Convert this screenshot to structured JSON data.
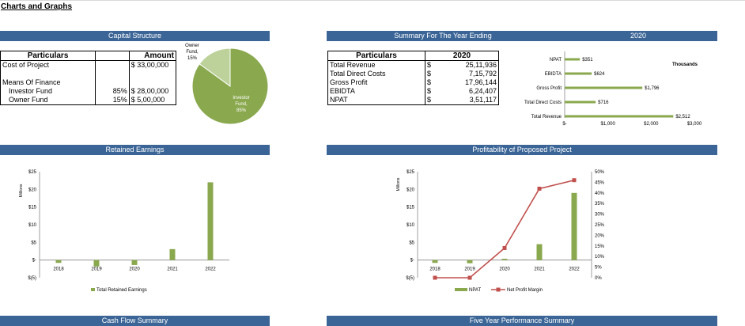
{
  "page_title": "Charts and Graphs",
  "capital": {
    "band": "Capital Structure",
    "col1": "Particulars",
    "col2": "Amount",
    "rows": [
      {
        "label": "Cost of Project",
        "pct": "",
        "amount": "$ 33,00,000"
      },
      {
        "label": "",
        "pct": "",
        "amount": ""
      },
      {
        "label": "Means Of Finance",
        "pct": "",
        "amount": ""
      },
      {
        "label": "Investor Fund",
        "pct": "85%",
        "amount": "$ 28,00,000"
      },
      {
        "label": "Owner Fund",
        "pct": "15%",
        "amount": "$ 5,00,000"
      }
    ]
  },
  "summary": {
    "band": "Summary For The Year Ending",
    "band_year": "2020",
    "col1": "Particulars",
    "col2": "2020",
    "rows": [
      {
        "label": "Total Revenue",
        "cur": "$",
        "value": "25,11,936"
      },
      {
        "label": "Total Direct Costs",
        "cur": "$",
        "value": "7,15,792"
      },
      {
        "label": "Gross Profit",
        "cur": "$",
        "value": "17,96,144"
      },
      {
        "label": "EBIDTA",
        "cur": "$",
        "value": "6,24,407"
      },
      {
        "label": "NPAT",
        "cur": "$",
        "value": "3,51,117"
      }
    ]
  },
  "bands": {
    "retained": "Retained Earnings",
    "profitability": "Profitability of Proposed Project",
    "cashflow": "Cash Flow Summary",
    "fiveyear": "Five Year Performance Summary"
  },
  "chart_data": [
    {
      "type": "pie",
      "slices": [
        {
          "name": "Investor Fund",
          "value": 85,
          "label_lines": [
            "Investor",
            "Fund,",
            "85%"
          ],
          "color": "#8aa84e"
        },
        {
          "name": "Owner Fund",
          "value": 15,
          "label_lines": [
            "Owner",
            "Fund,",
            "15%"
          ],
          "color": "#bcd29a"
        }
      ]
    },
    {
      "type": "bar",
      "orientation": "horizontal",
      "categories": [
        "NPAT",
        "EBIDTA",
        "Gross Profit",
        "Total Direct Costs",
        "Total Revenue"
      ],
      "values": [
        351,
        624,
        1796,
        716,
        2512
      ],
      "value_labels": [
        "$351",
        "$624",
        "$1,796",
        "$716",
        "$2,512"
      ],
      "xlim": [
        0,
        3000
      ],
      "x_ticks": [
        {
          "v": 0,
          "label": "$-"
        },
        {
          "v": 1000,
          "label": "$1,000"
        },
        {
          "v": 2000,
          "label": "$2,000"
        },
        {
          "v": 3000,
          "label": "$3,000"
        }
      ],
      "unit_label": "Thousands",
      "color": "#8aa84e"
    },
    {
      "type": "bar",
      "categories": [
        "2018",
        "2019",
        "2020",
        "2021",
        "2022"
      ],
      "series": [
        {
          "name": "Total Retained Earnings",
          "values": [
            -0.8,
            -1.8,
            -1.4,
            3.1,
            22.0
          ],
          "color": "#8aa84e"
        }
      ],
      "ylabel": "Millions",
      "ylim": [
        -5,
        25
      ],
      "y_ticks": [
        {
          "v": 25,
          "label": "$25"
        },
        {
          "v": 20,
          "label": "$20"
        },
        {
          "v": 15,
          "label": "$15"
        },
        {
          "v": 10,
          "label": "$10"
        },
        {
          "v": 5,
          "label": "$5"
        },
        {
          "v": 0,
          "label": "$-"
        },
        {
          "v": -5,
          "label": "$(5)"
        }
      ]
    },
    {
      "type": "bar",
      "categories": [
        "2018",
        "2019",
        "2020",
        "2021",
        "2022"
      ],
      "series": [
        {
          "name": "NPAT",
          "type": "bar",
          "axis": "left",
          "values": [
            -0.8,
            -0.9,
            0.35,
            4.5,
            19.0
          ],
          "color": "#8aa84e"
        },
        {
          "name": "Net Profit Margin",
          "type": "line",
          "axis": "right",
          "values": [
            0,
            0,
            14,
            42,
            46
          ],
          "color": "#c0504d"
        }
      ],
      "ylabel": "Millions",
      "ylim": [
        -5,
        25
      ],
      "y_ticks": [
        {
          "v": 25,
          "label": "$25"
        },
        {
          "v": 20,
          "label": "$20"
        },
        {
          "v": 15,
          "label": "$15"
        },
        {
          "v": 10,
          "label": "$10"
        },
        {
          "v": 5,
          "label": "$5"
        },
        {
          "v": 0,
          "label": "$-"
        },
        {
          "v": -5,
          "label": "$(5)"
        }
      ],
      "y2lim": [
        0,
        50
      ],
      "y2_ticks": [
        {
          "v": 50,
          "label": "50%"
        },
        {
          "v": 45,
          "label": "45%"
        },
        {
          "v": 40,
          "label": "40%"
        },
        {
          "v": 35,
          "label": "35%"
        },
        {
          "v": 30,
          "label": "30%"
        },
        {
          "v": 25,
          "label": "25%"
        },
        {
          "v": 20,
          "label": "20%"
        },
        {
          "v": 15,
          "label": "15%"
        },
        {
          "v": 10,
          "label": "10%"
        },
        {
          "v": 5,
          "label": "5%"
        },
        {
          "v": 0,
          "label": "0%"
        }
      ]
    }
  ]
}
